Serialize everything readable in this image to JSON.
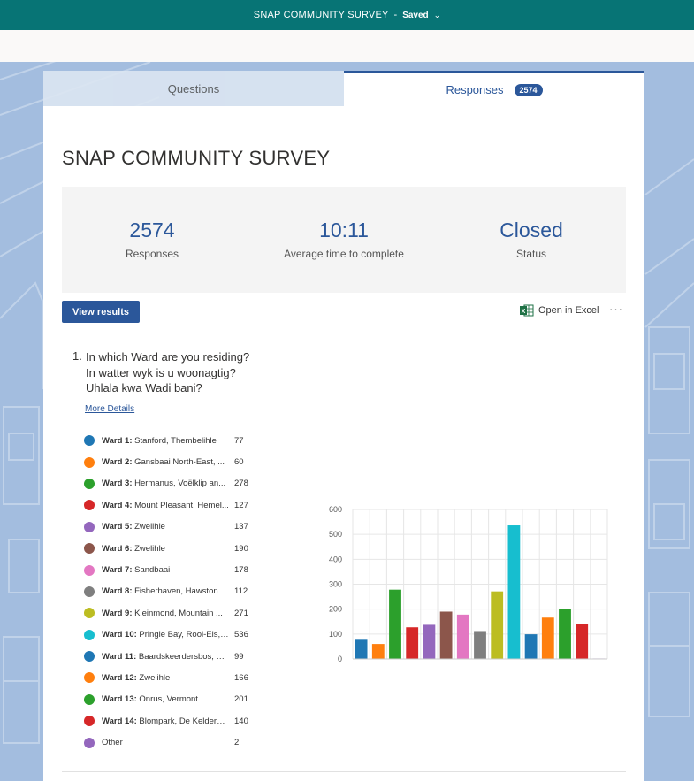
{
  "header": {
    "title": "SNAP COMMUNITY SURVEY",
    "separator": "-",
    "saved": "Saved"
  },
  "tabs": {
    "questions": "Questions",
    "responses": "Responses",
    "responses_badge": "2574"
  },
  "survey": {
    "title": "SNAP COMMUNITY SURVEY"
  },
  "stats": [
    {
      "value": "2574",
      "label": "Responses"
    },
    {
      "value": "10:11",
      "label": "Average time to complete"
    },
    {
      "value": "Closed",
      "label": "Status"
    }
  ],
  "toolbar": {
    "view_results": "View results",
    "open_in_excel": "Open in Excel",
    "more": "···"
  },
  "question": {
    "number": "1.",
    "lines": [
      "In which Ward are you residing?",
      "In watter wyk is u woonagtig?",
      "Uhlala kwa Wadi bani?"
    ],
    "more_details": "More Details"
  },
  "legend": [
    {
      "ward": "Ward 1:",
      "place": "Stanford, Thembelihle",
      "count": "77",
      "color": "#1f77b4"
    },
    {
      "ward": "Ward 2:",
      "place": "Gansbaai North-East, ...",
      "count": "60",
      "color": "#ff7f0e"
    },
    {
      "ward": "Ward 3:",
      "place": "Hermanus, Voëlklip an...",
      "count": "278",
      "color": "#2ca02c"
    },
    {
      "ward": "Ward 4:",
      "place": "Mount Pleasant, Hemel...",
      "count": "127",
      "color": "#d62728"
    },
    {
      "ward": "Ward 5:",
      "place": "Zwelihle",
      "count": "137",
      "color": "#9467bd"
    },
    {
      "ward": "Ward 6:",
      "place": "Zwelihle",
      "count": "190",
      "color": "#8c564b"
    },
    {
      "ward": "Ward 7:",
      "place": "Sandbaai",
      "count": "178",
      "color": "#e377c2"
    },
    {
      "ward": "Ward 8:",
      "place": "Fisherhaven, Hawston",
      "count": "112",
      "color": "#7f7f7f"
    },
    {
      "ward": "Ward 9:",
      "place": "Kleinmond, Mountain ...",
      "count": "271",
      "color": "#bcbd22"
    },
    {
      "ward": "Ward 10:",
      "place": "Pringle Bay, Rooi-Els, ...",
      "count": "536",
      "color": "#17becf"
    },
    {
      "ward": "Ward 11:",
      "place": "Baardskeerdersbos, El...",
      "count": "99",
      "color": "#1f77b4"
    },
    {
      "ward": "Ward 12:",
      "place": "Zwelihle",
      "count": "166",
      "color": "#ff7f0e"
    },
    {
      "ward": "Ward 13:",
      "place": "Onrus, Vermont",
      "count": "201",
      "color": "#2ca02c"
    },
    {
      "ward": "Ward 14:",
      "place": "Blompark, De Kelders,...",
      "count": "140",
      "color": "#d62728"
    },
    {
      "ward": "",
      "place": "Other",
      "count": "2",
      "color": "#9467bd"
    }
  ],
  "chart_data": {
    "type": "bar",
    "categories": [
      "Ward 1",
      "Ward 2",
      "Ward 3",
      "Ward 4",
      "Ward 5",
      "Ward 6",
      "Ward 7",
      "Ward 8",
      "Ward 9",
      "Ward 10",
      "Ward 11",
      "Ward 12",
      "Ward 13",
      "Ward 14",
      "Other"
    ],
    "values": [
      77,
      60,
      278,
      127,
      137,
      190,
      178,
      112,
      271,
      536,
      99,
      166,
      201,
      140,
      2
    ],
    "colors": [
      "#1f77b4",
      "#ff7f0e",
      "#2ca02c",
      "#d62728",
      "#9467bd",
      "#8c564b",
      "#e377c2",
      "#7f7f7f",
      "#bcbd22",
      "#17becf",
      "#1f77b4",
      "#ff7f0e",
      "#2ca02c",
      "#d62728",
      "#9467bd"
    ],
    "yticks": [
      0,
      100,
      200,
      300,
      400,
      500,
      600
    ],
    "ylim": [
      0,
      600
    ],
    "grid": true
  }
}
